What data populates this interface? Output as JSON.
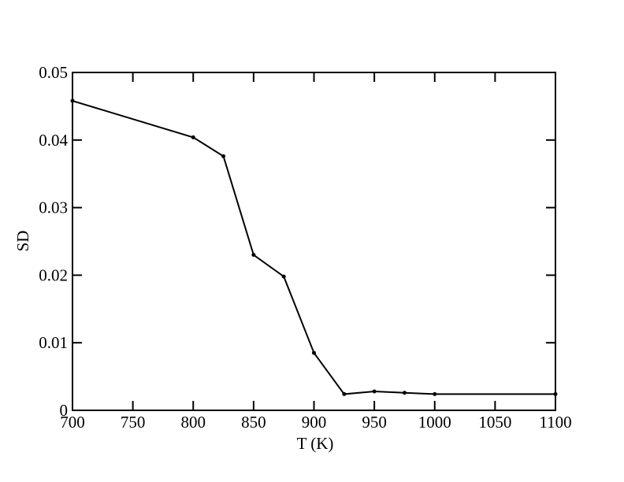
{
  "chart_data": {
    "type": "line",
    "x_label": "T (K)",
    "y_label": "SD",
    "x": [
      700,
      800,
      825,
      850,
      875,
      900,
      925,
      950,
      975,
      1000,
      1100
    ],
    "series": [
      {
        "color": "#000000",
        "values": [
          0.0458,
          0.0404,
          0.0376,
          0.023,
          0.0198,
          0.0085,
          0.0024,
          0.0028,
          0.0026,
          0.0024,
          0.0024
        ]
      }
    ],
    "xlim": [
      700,
      1100
    ],
    "xticks": [
      700,
      750,
      800,
      850,
      900,
      950,
      1000,
      1050,
      1100
    ],
    "ylim": [
      0,
      0.05
    ],
    "yticks": [
      0,
      0.01,
      0.02,
      0.03,
      0.04,
      0.05
    ],
    "grid": false
  }
}
